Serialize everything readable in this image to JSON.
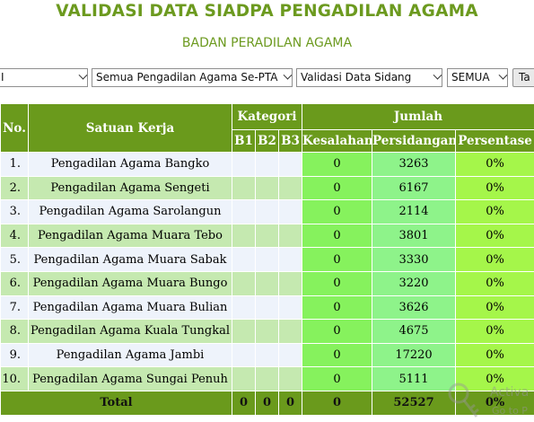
{
  "header": {
    "title": "VALIDASI DATA SIADPA PENGADILAN AGAMA",
    "subtitle": "BADAN PERADILAN AGAMA"
  },
  "filters": {
    "select1": "I",
    "select2": "Semua Pengadilan Agama Se-PTA",
    "select3": "Validasi Data Sidang",
    "select4": "SEMUA",
    "button": "Ta"
  },
  "table": {
    "headers": {
      "no": "No.",
      "satuan_kerja": "Satuan Kerja",
      "kategori": "Kategori",
      "b1": "B1",
      "b2": "B2",
      "b3": "B3",
      "jumlah": "Jumlah",
      "kesalahan": "Kesalahan",
      "persidangan": "Persidangan",
      "persentase": "Persentase"
    },
    "rows": [
      {
        "no": "1.",
        "name": "Pengadilan Agama Bangko",
        "kesalahan": "0",
        "persidangan": "3263",
        "persentase": "0%"
      },
      {
        "no": "2.",
        "name": "Pengadilan Agama Sengeti",
        "kesalahan": "0",
        "persidangan": "6167",
        "persentase": "0%"
      },
      {
        "no": "3.",
        "name": "Pengadilan Agama Sarolangun",
        "kesalahan": "0",
        "persidangan": "2114",
        "persentase": "0%"
      },
      {
        "no": "4.",
        "name": "Pengadilan Agama Muara Tebo",
        "kesalahan": "0",
        "persidangan": "3801",
        "persentase": "0%"
      },
      {
        "no": "5.",
        "name": "Pengadilan Agama Muara Sabak",
        "kesalahan": "0",
        "persidangan": "3330",
        "persentase": "0%"
      },
      {
        "no": "6.",
        "name": "Pengadilan Agama Muara Bungo",
        "kesalahan": "0",
        "persidangan": "3220",
        "persentase": "0%"
      },
      {
        "no": "7.",
        "name": "Pengadilan Agama Muara Bulian",
        "kesalahan": "0",
        "persidangan": "3626",
        "persentase": "0%"
      },
      {
        "no": "8.",
        "name": "Pengadilan Agama Kuala Tungkal",
        "kesalahan": "0",
        "persidangan": "4675",
        "persentase": "0%"
      },
      {
        "no": "9.",
        "name": "Pengadilan Agama Jambi",
        "kesalahan": "0",
        "persidangan": "17220",
        "persentase": "0%"
      },
      {
        "no": "10.",
        "name": "Pengadilan Agama Sungai Penuh",
        "kesalahan": "0",
        "persidangan": "5111",
        "persentase": "0%"
      }
    ],
    "total": {
      "label": "Total",
      "b1": "0",
      "b2": "0",
      "b3": "0",
      "kesalahan": "0",
      "persidangan": "52527",
      "persentase": "0%"
    }
  },
  "watermark": {
    "text": "Activa",
    "subtext": "Go to P",
    "icon": "key-icon"
  }
}
